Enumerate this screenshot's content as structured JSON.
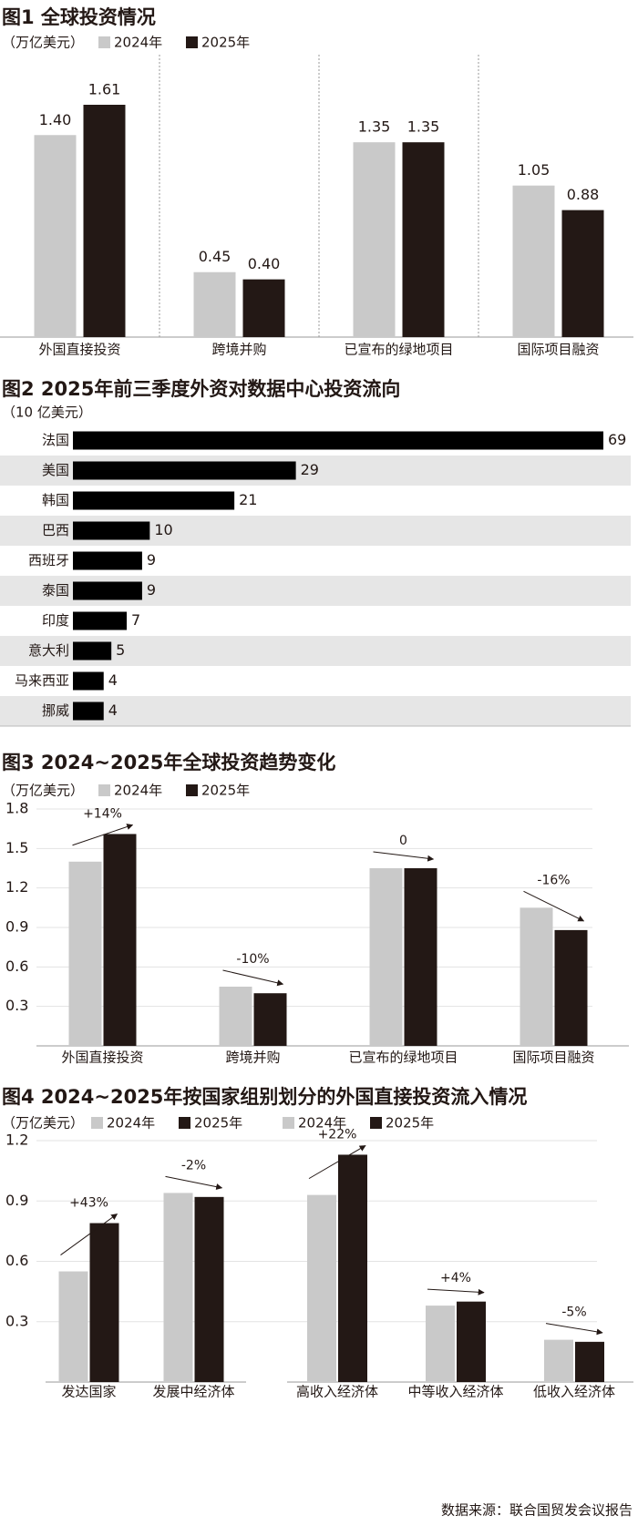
{
  "chart_data": [
    {
      "type": "bar",
      "title": "图1 全球投资情况",
      "unit": "（万亿美元）",
      "categories": [
        "外国直接投资",
        "跨境并购",
        "已宣布的绿地项目",
        "国际项目融资"
      ],
      "series": [
        {
          "name": "2024年",
          "color": "#c9c9c9",
          "values": [
            1.4,
            0.45,
            1.35,
            1.05
          ],
          "value_labels": [
            "1.40",
            "0.45",
            "1.35",
            "1.05"
          ]
        },
        {
          "name": "2025年",
          "color": "#231815",
          "values": [
            1.61,
            0.4,
            1.35,
            0.88
          ],
          "value_labels": [
            "1.61",
            "0.40",
            "1.35",
            "0.88"
          ]
        }
      ]
    },
    {
      "type": "hbar",
      "title": "图2 2025年前三季度外资对数据中心投资流向",
      "unit": "（10 亿美元）",
      "categories": [
        "法国",
        "美国",
        "韩国",
        "巴西",
        "西班牙",
        "泰国",
        "印度",
        "意大利",
        "马来西亚",
        "挪威"
      ],
      "values": [
        69,
        29,
        21,
        10,
        9,
        9,
        7,
        5,
        4,
        4
      ],
      "color": "#000000"
    },
    {
      "type": "bar",
      "title": "图3 2024~2025年全球投资趋势变化",
      "unit": "（万亿美元）",
      "categories": [
        "外国直接投资",
        "跨境并购",
        "已宣布的绿地项目",
        "国际项目融资"
      ],
      "series": [
        {
          "name": "2024年",
          "color": "#c9c9c9",
          "values": [
            1.4,
            0.45,
            1.35,
            1.05
          ]
        },
        {
          "name": "2025年",
          "color": "#231815",
          "values": [
            1.61,
            0.4,
            1.35,
            0.88
          ]
        }
      ],
      "annotations": [
        "+14%",
        "-10%",
        "0",
        "-16%"
      ],
      "ylim": [
        0,
        1.8
      ],
      "yticks": [
        0.3,
        0.6,
        0.9,
        1.2,
        1.5,
        1.8
      ],
      "grid": true
    },
    {
      "type": "bar",
      "title": "图4 2024~2025年按国家组别划分的外国直接投资流入情况",
      "unit": "（万亿美元）",
      "categories": [
        "发达国家",
        "发展中经济体"
      ],
      "series": [
        {
          "name": "2024年",
          "color": "#c9c9c9",
          "values": [
            0.55,
            0.94
          ]
        },
        {
          "name": "2025年",
          "color": "#231815",
          "values": [
            0.79,
            0.92
          ]
        }
      ],
      "annotations": [
        "+43%",
        "-2%"
      ],
      "ylim": [
        0,
        1.2
      ],
      "yticks": [
        0.3,
        0.6,
        0.9,
        1.2
      ],
      "grid": true
    },
    {
      "type": "bar",
      "categories": [
        "高收入经济体",
        "中等收入经济体",
        "低收入经济体"
      ],
      "series": [
        {
          "name": "2024年",
          "color": "#c9c9c9",
          "values": [
            0.93,
            0.38,
            0.21
          ]
        },
        {
          "name": "2025年",
          "color": "#231815",
          "values": [
            1.13,
            0.4,
            0.2
          ]
        }
      ],
      "annotations": [
        "+22%",
        "+4%",
        "-5%"
      ],
      "ylim": [
        0,
        1.2
      ]
    }
  ],
  "source": "数据来源：联合国贸发会议报告"
}
